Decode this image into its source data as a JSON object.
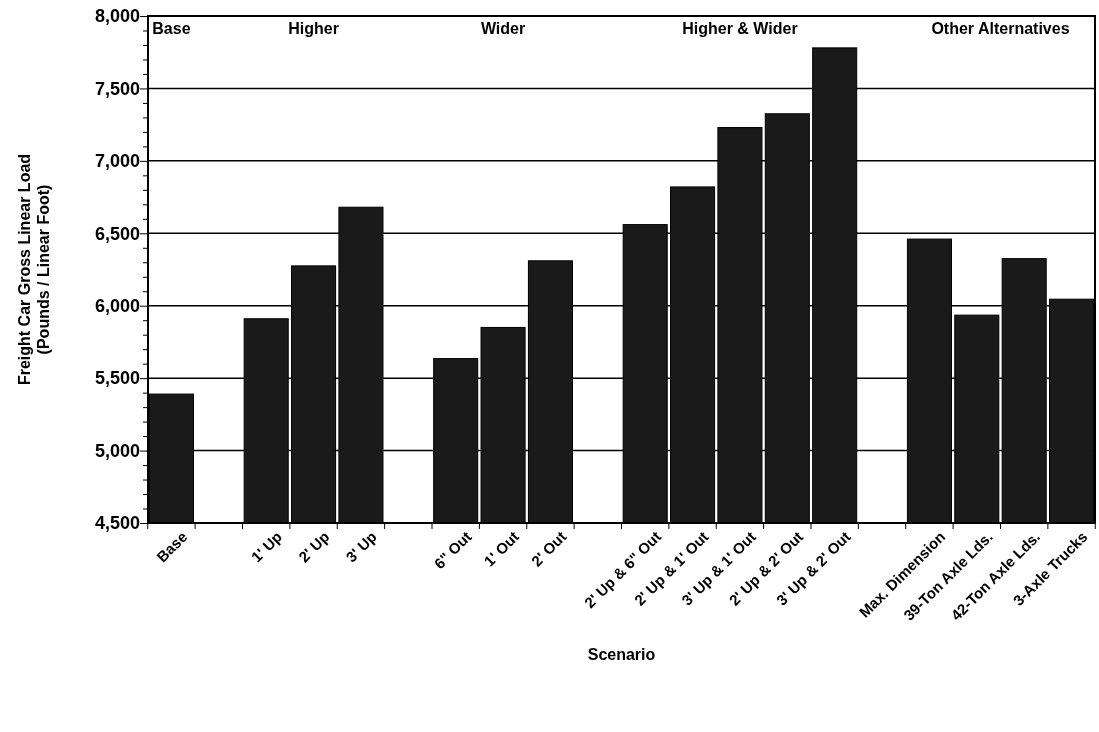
{
  "chart_data": {
    "type": "bar",
    "xlabel": "Scenario",
    "ylabel": "Freight Car Gross Linear Load\n(Pounds / Linear Foot)",
    "categories": [
      "Base",
      null,
      "1' Up",
      "2' Up",
      "3' Up",
      null,
      "6\" Out",
      "1' Out",
      "2' Out",
      null,
      "2' Up & 6\" Out",
      "2' Up & 1' Out",
      "3' Up & 1' Out",
      "2' Up & 2' Out",
      "3' Up & 2' Out",
      null,
      "Max. Dimension",
      "39-Ton Axle Lds.",
      "42-Ton Axle Lds.",
      "3-Axle Trucks"
    ],
    "values": [
      5390,
      null,
      5910,
      6275,
      6680,
      null,
      5635,
      5850,
      6310,
      null,
      6560,
      6820,
      7230,
      7325,
      7780,
      null,
      6460,
      5935,
      6325,
      6045
    ],
    "color": "#1a1a1a",
    "ylim": [
      4500,
      8000
    ],
    "yticks": [
      {
        "value": 4500,
        "label": "4,500"
      },
      {
        "value": 4600,
        "label": null
      },
      {
        "value": 4700,
        "label": null
      },
      {
        "value": 4800,
        "label": null
      },
      {
        "value": 4900,
        "label": null
      },
      {
        "value": 5000,
        "label": "5,000"
      },
      {
        "value": 5100,
        "label": null
      },
      {
        "value": 5200,
        "label": null
      },
      {
        "value": 5300,
        "label": null
      },
      {
        "value": 5400,
        "label": null
      },
      {
        "value": 5500,
        "label": "5,500"
      },
      {
        "value": 5600,
        "label": null
      },
      {
        "value": 5700,
        "label": null
      },
      {
        "value": 5800,
        "label": null
      },
      {
        "value": 5900,
        "label": null
      },
      {
        "value": 6000,
        "label": "6,000"
      },
      {
        "value": 6100,
        "label": null
      },
      {
        "value": 6200,
        "label": null
      },
      {
        "value": 6300,
        "label": null
      },
      {
        "value": 6400,
        "label": null
      },
      {
        "value": 6500,
        "label": "6,500"
      },
      {
        "value": 6600,
        "label": null
      },
      {
        "value": 6700,
        "label": null
      },
      {
        "value": 6800,
        "label": null
      },
      {
        "value": 6900,
        "label": null
      },
      {
        "value": 7000,
        "label": "7,000"
      },
      {
        "value": 7100,
        "label": null
      },
      {
        "value": 7200,
        "label": null
      },
      {
        "value": 7300,
        "label": null
      },
      {
        "value": 7400,
        "label": null
      },
      {
        "value": 7500,
        "label": "7,500"
      },
      {
        "value": 7600,
        "label": null
      },
      {
        "value": 7700,
        "label": null
      },
      {
        "value": 7800,
        "label": null
      },
      {
        "value": 7900,
        "label": null
      },
      {
        "value": 8000,
        "label": "8,000"
      }
    ],
    "grid": "y",
    "annotations": [
      "Base",
      "Higher",
      "Wider",
      "Higher & Wider",
      "Other Alternatives"
    ]
  }
}
